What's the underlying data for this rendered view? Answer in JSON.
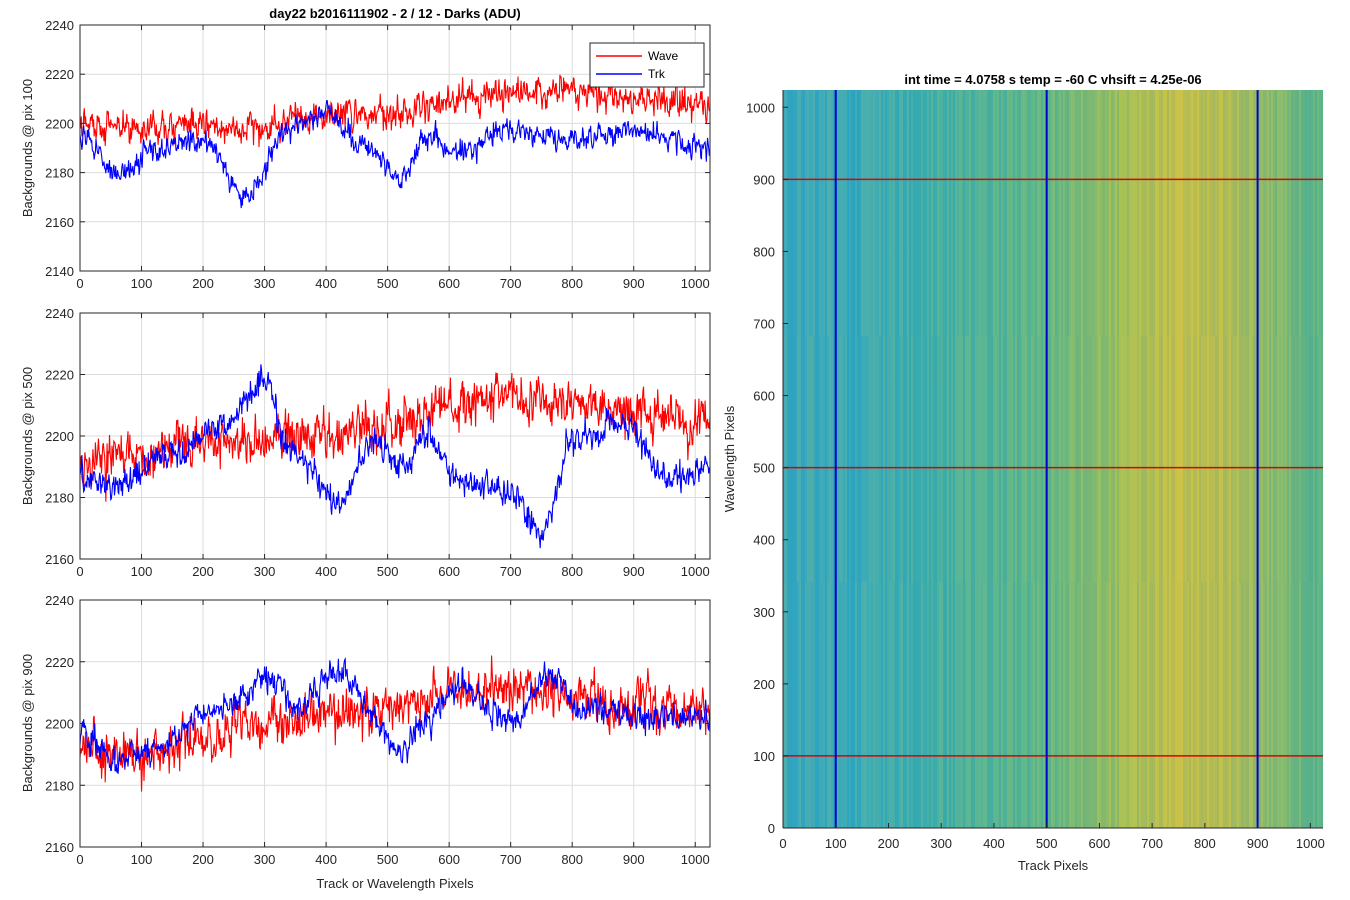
{
  "colors": {
    "wave": "#ff0000",
    "trk": "#0000ff",
    "grid": "#dcdcdc",
    "axis": "#262626",
    "heat_low": "#1fa5c8",
    "heat_mid": "#5ab878",
    "heat_high": "#d7c23a"
  },
  "chart_data": [
    {
      "type": "line",
      "title": "day22 b2016111902 - 2 / 12 - Darks (ADU)",
      "xlabel": "",
      "ylabel": "Backgrounds @ pix 100",
      "xlim": [
        0,
        1024
      ],
      "ylim": [
        2140,
        2240
      ],
      "xticks": [
        0,
        100,
        200,
        300,
        400,
        500,
        600,
        700,
        800,
        900,
        1000
      ],
      "yticks": [
        2140,
        2160,
        2180,
        2200,
        2220,
        2240
      ],
      "grid": true,
      "legend": "top-right",
      "series": [
        {
          "name": "Wave",
          "color": "#ff0000",
          "mean": 2203,
          "noise": 7,
          "x_knots": [
            0,
            100,
            200,
            300,
            400,
            500,
            600,
            700,
            800,
            900,
            1024
          ],
          "y_knots": [
            2200,
            2198,
            2199,
            2198,
            2203,
            2205,
            2210,
            2212,
            2213,
            2210,
            2207
          ]
        },
        {
          "name": "Trk",
          "color": "#0000ff",
          "noise": 5,
          "x_knots": [
            0,
            60,
            130,
            200,
            270,
            340,
            400,
            460,
            520,
            560,
            620,
            700,
            800,
            900,
            1024
          ],
          "y_knots": [
            2196,
            2180,
            2190,
            2193,
            2170,
            2198,
            2205,
            2192,
            2178,
            2195,
            2188,
            2198,
            2192,
            2197,
            2190
          ]
        }
      ]
    },
    {
      "type": "line",
      "title": "",
      "xlabel": "",
      "ylabel": "Backgrounds @ pix 500",
      "xlim": [
        0,
        1024
      ],
      "ylim": [
        2160,
        2240
      ],
      "xticks": [
        0,
        100,
        200,
        300,
        400,
        500,
        600,
        700,
        800,
        900,
        1000
      ],
      "yticks": [
        2160,
        2180,
        2200,
        2220,
        2240
      ],
      "grid": true,
      "series": [
        {
          "name": "Wave",
          "color": "#ff0000",
          "noise": 8,
          "x_knots": [
            0,
            100,
            200,
            300,
            400,
            500,
            600,
            700,
            800,
            900,
            1024
          ],
          "y_knots": [
            2192,
            2193,
            2198,
            2198,
            2200,
            2203,
            2210,
            2212,
            2210,
            2208,
            2204
          ]
        },
        {
          "name": "Trk",
          "color": "#0000ff",
          "noise": 5,
          "x_knots": [
            0,
            60,
            150,
            230,
            300,
            340,
            420,
            480,
            530,
            560,
            620,
            700,
            750,
            800,
            880,
            960,
            1024
          ],
          "y_knots": [
            2188,
            2183,
            2195,
            2203,
            2218,
            2196,
            2178,
            2198,
            2190,
            2200,
            2185,
            2182,
            2168,
            2198,
            2205,
            2186,
            2190
          ]
        }
      ]
    },
    {
      "type": "line",
      "title": "",
      "xlabel": "Track or Wavelength Pixels",
      "ylabel": "Backgrounds @ pix 900",
      "xlim": [
        0,
        1024
      ],
      "ylim": [
        2160,
        2240
      ],
      "xticks": [
        0,
        100,
        200,
        300,
        400,
        500,
        600,
        700,
        800,
        900,
        1000
      ],
      "yticks": [
        2160,
        2180,
        2200,
        2220,
        2240
      ],
      "grid": true,
      "series": [
        {
          "name": "Wave",
          "color": "#ff0000",
          "noise": 8,
          "x_knots": [
            0,
            100,
            200,
            300,
            400,
            500,
            600,
            700,
            800,
            900,
            1024
          ],
          "y_knots": [
            2192,
            2190,
            2195,
            2200,
            2203,
            2206,
            2210,
            2211,
            2209,
            2207,
            2204
          ]
        },
        {
          "name": "Trk",
          "color": "#0000ff",
          "noise": 5,
          "x_knots": [
            0,
            60,
            130,
            200,
            260,
            300,
            360,
            420,
            470,
            520,
            560,
            620,
            700,
            760,
            820,
            900,
            1024
          ],
          "y_knots": [
            2197,
            2188,
            2192,
            2203,
            2207,
            2215,
            2205,
            2218,
            2205,
            2190,
            2200,
            2212,
            2200,
            2215,
            2205,
            2202,
            2203
          ]
        }
      ]
    },
    {
      "type": "heatmap",
      "title": "int time = 4.0758 s    temp = -60 C    vhsift = 4.25e-06",
      "xlabel": "Track Pixels",
      "ylabel": "Wavelength Pixels",
      "xlim": [
        0,
        1024
      ],
      "ylim": [
        0,
        1024
      ],
      "xticks": [
        0,
        100,
        200,
        300,
        400,
        500,
        600,
        700,
        800,
        900,
        1000
      ],
      "yticks": [
        0,
        100,
        200,
        300,
        400,
        500,
        600,
        700,
        800,
        900,
        1000
      ],
      "grid": false,
      "vlines": [
        100,
        500,
        900
      ],
      "hlines": [
        100,
        500,
        900
      ],
      "vline_color": "#0000cc",
      "hline_color": "#e00000"
    }
  ]
}
